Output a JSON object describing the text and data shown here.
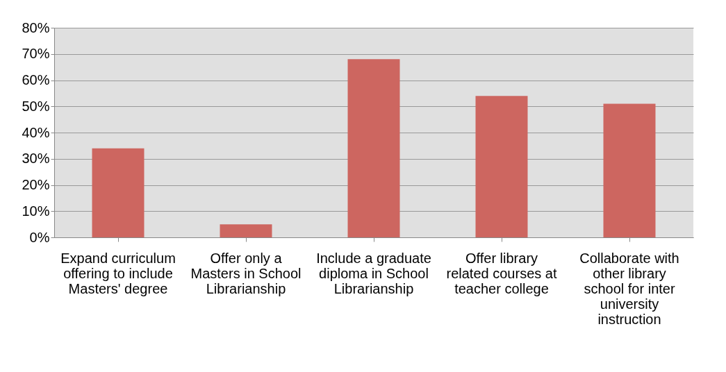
{
  "chart_data": {
    "type": "bar",
    "categories": [
      "Expand curriculum offering to include Masters' degree",
      "Offer only a Masters in School Librarianship",
      "Include a graduate diploma in School Librarianship",
      "Offer library related courses at teacher college",
      "Collaborate with other library school for inter university instruction"
    ],
    "values": [
      34,
      5,
      68,
      54,
      51
    ],
    "color": "#cd6660",
    "ylim": [
      0,
      80
    ],
    "yticks": [
      {
        "value": 0,
        "label": "0%"
      },
      {
        "value": 10,
        "label": "10%"
      },
      {
        "value": 20,
        "label": "20%"
      },
      {
        "value": 30,
        "label": "30%"
      },
      {
        "value": 40,
        "label": "40%"
      },
      {
        "value": 50,
        "label": "50%"
      },
      {
        "value": 60,
        "label": "60%"
      },
      {
        "value": 70,
        "label": "70%"
      },
      {
        "value": 80,
        "label": "80%"
      }
    ],
    "grid": "y"
  }
}
